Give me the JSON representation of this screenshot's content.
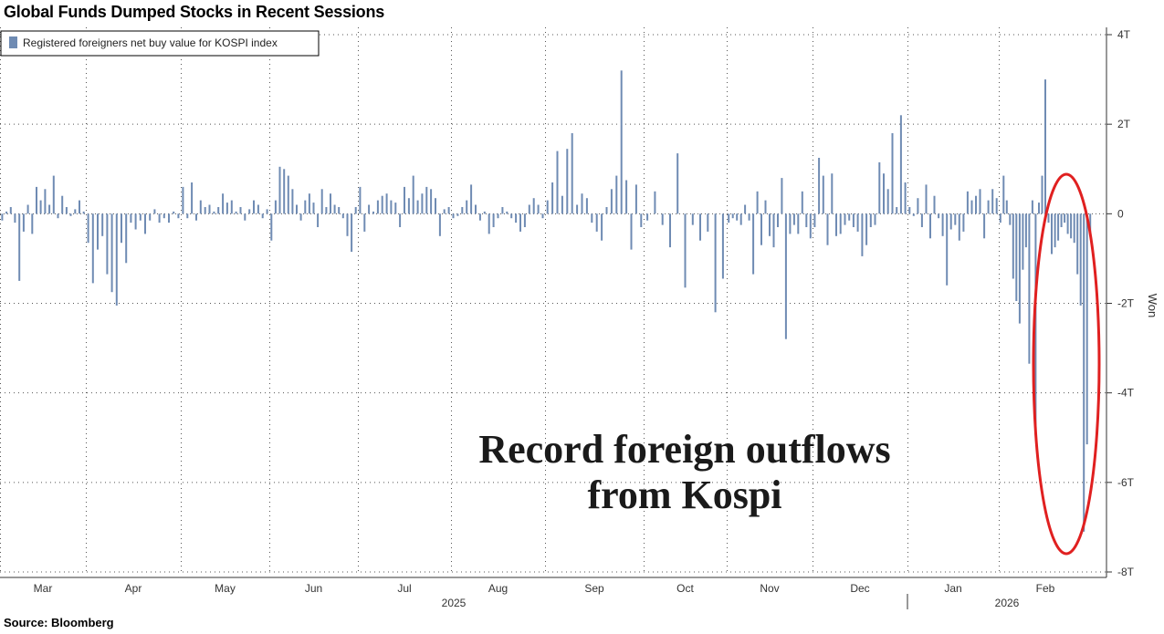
{
  "title": "Global Funds Dumped Stocks in Recent Sessions",
  "source": "Source: Bloomberg",
  "annotation": {
    "line1": "Record foreign outflows",
    "line2": "from Kospi"
  },
  "colors": {
    "bar": "#6f8bb3",
    "highlight": "#e02020",
    "grid": "#555555"
  },
  "chart_data": {
    "type": "bar",
    "legend": "Registered foreigners net buy value for KOSPI index",
    "legend_position": "top-left",
    "ylabel": "Won",
    "y_axis_side": "right",
    "ylim": [
      -8,
      4
    ],
    "y_unit": "trillion won",
    "y_ticks": [
      4,
      2,
      0,
      -2,
      -4,
      -6,
      -8
    ],
    "y_tick_labels": [
      "4T",
      "2T",
      "0",
      "-2T",
      "-4T",
      "-6T",
      "-8T"
    ],
    "grid": true,
    "x_month_labels": [
      "Mar",
      "Apr",
      "May",
      "Jun",
      "Jul",
      "Aug",
      "Sep",
      "Oct",
      "Nov",
      "Dec",
      "Jan",
      "Feb"
    ],
    "x_year_labels": [
      "2025",
      "2026"
    ],
    "months": [
      {
        "label": "Mar",
        "values": [
          -0.15,
          0.05,
          0.15,
          -0.2,
          -1.5,
          -0.4,
          0.2,
          -0.45,
          0.6,
          0.3,
          0.55,
          0.2,
          0.85,
          -0.1,
          0.4,
          0.15,
          -0.05,
          0.1,
          0.3,
          0.05
        ]
      },
      {
        "label": "Apr",
        "values": [
          -0.65,
          -1.55,
          -0.8,
          -0.5,
          -1.35,
          -1.75,
          -2.05,
          -0.65,
          -1.1,
          -0.2,
          -0.35,
          -0.15,
          -0.45,
          -0.15,
          0.1,
          -0.2,
          -0.1,
          -0.2,
          0.05,
          -0.1
        ]
      },
      {
        "label": "May",
        "values": [
          0.6,
          -0.1,
          0.7,
          -0.15,
          0.3,
          0.15,
          0.2,
          0.05,
          0.15,
          0.45,
          0.25,
          0.3,
          0.05,
          0.15,
          -0.15,
          0.1,
          0.3,
          0.2,
          -0.1,
          0.1
        ]
      },
      {
        "label": "Jun",
        "values": [
          -0.6,
          0.3,
          1.05,
          1.0,
          0.85,
          0.55,
          0.2,
          -0.15,
          0.3,
          0.45,
          0.25,
          -0.3,
          0.55,
          0.15,
          0.45,
          0.2,
          0.15,
          -0.1,
          -0.5,
          -0.85,
          0.15
        ]
      },
      {
        "label": "Jul",
        "values": [
          0.6,
          -0.4,
          0.2,
          0.05,
          0.3,
          0.4,
          0.45,
          0.3,
          0.25,
          -0.3,
          0.6,
          0.35,
          0.85,
          0.3,
          0.45,
          0.6,
          0.55,
          0.35,
          -0.5,
          0.1,
          0.15
        ]
      },
      {
        "label": "Aug",
        "values": [
          -0.1,
          -0.05,
          0.15,
          0.3,
          0.65,
          0.2,
          -0.15,
          0.05,
          -0.45,
          -0.3,
          -0.1,
          0.15,
          0.05,
          -0.1,
          -0.2,
          -0.4,
          -0.3,
          0.2,
          0.35,
          0.2,
          -0.1
        ]
      },
      {
        "label": "Sep",
        "values": [
          0.3,
          0.7,
          1.4,
          0.4,
          1.45,
          1.8,
          0.2,
          0.45,
          0.35,
          -0.2,
          -0.4,
          -0.6,
          0.15,
          0.55,
          0.85,
          3.2,
          0.75,
          -0.8,
          0.65,
          -0.3
        ]
      },
      {
        "label": "Oct",
        "values": [
          -0.15,
          0.5,
          -0.25,
          -0.75,
          1.35,
          -1.65,
          -0.25,
          -0.6,
          -0.4,
          -2.2,
          -1.45
        ]
      },
      {
        "label": "Nov",
        "values": [
          -0.2,
          -0.1,
          -0.15,
          -0.25,
          0.2,
          -0.15,
          -1.35,
          0.5,
          -0.7,
          0.3,
          -0.5,
          -0.75,
          -0.3,
          0.8,
          -2.8,
          -0.45,
          -0.25,
          -0.45,
          0.5,
          -0.3,
          -0.55
        ]
      },
      {
        "label": "Dec",
        "values": [
          -0.3,
          1.25,
          0.85,
          -0.7,
          0.9,
          -0.5,
          -0.45,
          -0.25,
          -0.15,
          -0.3,
          -0.4,
          -0.95,
          -0.7,
          -0.3,
          -0.25,
          1.15,
          0.9,
          0.55,
          1.8,
          0.15,
          2.2,
          0.7
        ]
      },
      {
        "label": "Jan",
        "values": [
          0.15,
          -0.05,
          0.35,
          -0.3,
          0.65,
          -0.55,
          0.4,
          -0.1,
          -0.5,
          -1.6,
          -0.35,
          -0.25,
          -0.6,
          -0.4,
          0.5,
          0.3,
          0.4,
          0.55,
          -0.55,
          0.3,
          0.55,
          0.35
        ]
      },
      {
        "label": "Feb",
        "values": [
          -0.2,
          0.85,
          0.3,
          -0.25,
          -1.45,
          -1.95,
          -2.45,
          -1.25,
          -0.75,
          -3.35,
          0.3,
          -4.95,
          0.25,
          0.85,
          3.0,
          -0.2,
          -0.9,
          -0.75,
          -0.6,
          -0.3,
          -0.2,
          -0.45,
          -0.55,
          -0.65,
          -1.35,
          -2.05,
          -7.1,
          -5.15,
          -0.45
        ]
      }
    ]
  }
}
